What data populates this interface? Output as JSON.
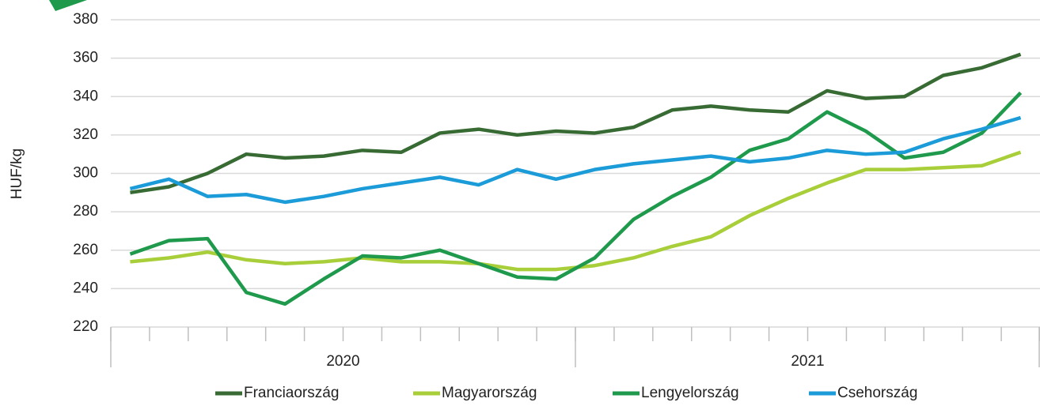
{
  "chart_data": {
    "type": "line",
    "y_label": "HUF/kg",
    "categories": [
      null,
      null,
      null,
      null,
      null,
      null,
      null,
      null,
      null,
      null,
      null,
      null,
      null,
      null,
      null,
      null,
      null,
      null,
      null,
      null,
      null,
      null,
      null,
      null
    ],
    "groups": [
      {
        "label": "2020",
        "count": 12
      },
      {
        "label": "2021",
        "count": 12
      }
    ],
    "series": [
      {
        "name": "Franciaország",
        "color": "#386b34",
        "values": [
          290,
          293,
          300,
          310,
          308,
          309,
          312,
          311,
          321,
          323,
          320,
          322,
          321,
          324,
          333,
          335,
          333,
          332,
          343,
          339,
          340,
          351,
          355,
          362
        ]
      },
      {
        "name": "Magyarország",
        "color": "#a8cf3a",
        "values": [
          254,
          256,
          259,
          255,
          253,
          254,
          256,
          254,
          254,
          253,
          250,
          250,
          252,
          256,
          262,
          267,
          278,
          287,
          295,
          302,
          302,
          303,
          304,
          311
        ]
      },
      {
        "name": "Lengyelország",
        "color": "#1f9a4c",
        "values": [
          258,
          265,
          266,
          238,
          232,
          245,
          257,
          256,
          260,
          253,
          246,
          245,
          256,
          276,
          288,
          298,
          312,
          318,
          332,
          322,
          308,
          311,
          321,
          342
        ]
      },
      {
        "name": "Csehország",
        "color": "#1b9bd7",
        "values": [
          292,
          297,
          288,
          289,
          285,
          288,
          292,
          295,
          298,
          294,
          302,
          297,
          302,
          305,
          307,
          309,
          306,
          308,
          312,
          310,
          311,
          318,
          323,
          329
        ]
      }
    ],
    "ylim": [
      220,
      380
    ],
    "yticks": [
      220,
      240,
      260,
      280,
      300,
      320,
      340,
      360,
      380
    ],
    "grid": true,
    "legend": "bottom"
  }
}
